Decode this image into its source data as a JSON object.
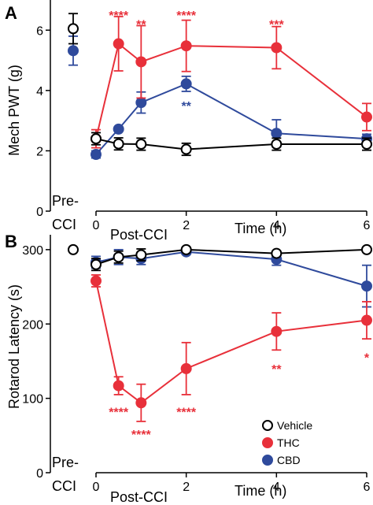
{
  "colors": {
    "vehicle": "#000000",
    "thc": "#e8303a",
    "cbd": "#2f4a9c"
  },
  "legend": [
    "Vehicle",
    "THC",
    "CBD"
  ],
  "chart_data": [
    {
      "panel": "A",
      "type": "line",
      "ylabel": "Mech PWT (g)",
      "xlabel": "Time (h)",
      "pre_label": [
        "Pre-",
        "CCI"
      ],
      "post_label": "Post-CCI",
      "ylim": [
        0,
        7
      ],
      "yticks": [
        0,
        2,
        4,
        6
      ],
      "xticks": [
        0,
        2,
        4,
        6
      ],
      "series": [
        {
          "name": "Vehicle",
          "color": "#000000",
          "open": true,
          "pre": {
            "y": 6.05,
            "err": 0.5
          },
          "x": [
            0,
            0.5,
            1,
            2,
            4,
            6
          ],
          "y": [
            2.4,
            2.23,
            2.22,
            2.05,
            2.22,
            2.22
          ],
          "err": [
            0.2,
            0.2,
            0.2,
            0.2,
            0.2,
            0.2
          ]
        },
        {
          "name": "THC",
          "color": "#e8303a",
          "open": false,
          "pre": null,
          "x": [
            0,
            0.5,
            1,
            2,
            4,
            6
          ],
          "y": [
            2.4,
            5.55,
            4.95,
            5.48,
            5.42,
            3.12
          ],
          "err": [
            0.3,
            0.9,
            1.2,
            0.85,
            0.7,
            0.45
          ]
        },
        {
          "name": "CBD",
          "color": "#2f4a9c",
          "open": false,
          "pre": {
            "y": 5.32,
            "err": 0.48
          },
          "x": [
            0,
            0.5,
            1,
            2,
            4,
            6
          ],
          "y": [
            1.88,
            2.72,
            3.6,
            4.22,
            2.58,
            2.4
          ],
          "err": [
            0.12,
            0.0,
            0.35,
            0.25,
            0.45,
            0.15
          ]
        }
      ],
      "annotations": [
        {
          "text": "****",
          "x": 0.5,
          "y": 6.5,
          "series": "THC"
        },
        {
          "text": "**",
          "x": 1,
          "y": 6.2,
          "series": "THC"
        },
        {
          "text": "****",
          "x": 2,
          "y": 6.5,
          "series": "THC"
        },
        {
          "text": "***",
          "x": 4,
          "y": 6.2,
          "series": "THC"
        },
        {
          "text": "**",
          "x": 2,
          "y": 3.5,
          "series": "CBD"
        }
      ]
    },
    {
      "panel": "B",
      "type": "line",
      "ylabel": "Rotarod Latency (s)",
      "xlabel": "Time (h)",
      "pre_label": [
        "Pre-",
        "CCI"
      ],
      "post_label": "Post-CCI",
      "ylim": [
        0,
        320
      ],
      "yticks": [
        0,
        100,
        200,
        300
      ],
      "xticks": [
        0,
        2,
        4,
        6
      ],
      "series": [
        {
          "name": "Vehicle",
          "color": "#000000",
          "open": true,
          "pre": {
            "y": 300,
            "err": 0
          },
          "x": [
            0,
            0.5,
            1,
            2,
            4,
            6
          ],
          "y": [
            280,
            290,
            293,
            300,
            295,
            300
          ],
          "err": [
            8,
            8,
            8,
            3,
            3,
            3
          ]
        },
        {
          "name": "THC",
          "color": "#e8303a",
          "open": false,
          "pre": null,
          "x": [
            0,
            0.5,
            1,
            2,
            4,
            6
          ],
          "y": [
            258,
            117,
            94,
            140,
            190,
            205
          ],
          "err": [
            8,
            12,
            25,
            35,
            25,
            25
          ]
        },
        {
          "name": "CBD",
          "color": "#2f4a9c",
          "open": false,
          "pre": null,
          "x": [
            0,
            0.5,
            1,
            2,
            4,
            6
          ],
          "y": [
            283,
            290,
            288,
            297,
            287,
            251
          ],
          "err": [
            8,
            10,
            8,
            3,
            8,
            28
          ]
        }
      ],
      "annotations": [
        {
          "text": "****",
          "x": 0.5,
          "y": 82,
          "series": "THC"
        },
        {
          "text": "****",
          "x": 1,
          "y": 52,
          "series": "THC"
        },
        {
          "text": "****",
          "x": 2,
          "y": 82,
          "series": "THC"
        },
        {
          "text": "**",
          "x": 4,
          "y": 140,
          "series": "THC"
        },
        {
          "text": "*",
          "x": 6,
          "y": 155,
          "series": "THC"
        }
      ]
    }
  ]
}
